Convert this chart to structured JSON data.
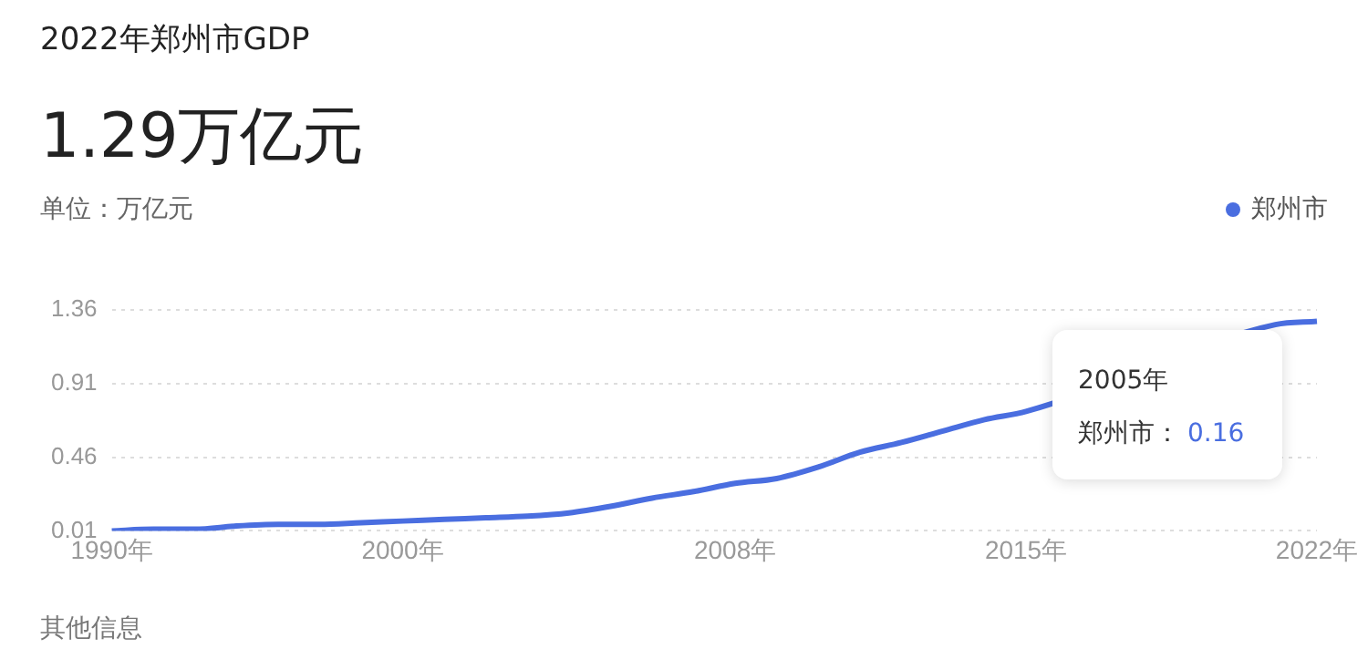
{
  "chart_data": {
    "type": "line",
    "title": "2022年郑州市GDP",
    "subtitle": "1.29万亿元",
    "ylabel": "单位：万亿元",
    "categories": [
      "1990年",
      null,
      null,
      null,
      null,
      null,
      null,
      "2000年",
      null,
      null,
      null,
      null,
      null,
      null,
      null,
      "2008年",
      null,
      null,
      null,
      null,
      null,
      null,
      "2015年",
      null,
      null,
      null,
      null,
      null,
      null,
      "2022年"
    ],
    "series": [
      {
        "name": "郑州市",
        "color": "#4a6ee0",
        "values": [
          0.01,
          0.02,
          0.02,
          0.04,
          0.05,
          0.05,
          0.06,
          0.07,
          0.08,
          0.09,
          0.1,
          0.12,
          0.16,
          0.21,
          0.25,
          0.3,
          0.33,
          0.4,
          0.49,
          0.55,
          0.62,
          0.69,
          0.74,
          null,
          null,
          null,
          null,
          null,
          1.27,
          1.29
        ]
      }
    ],
    "ylim": [
      0.01,
      1.36
    ],
    "yticks": [
      0.01,
      0.46,
      0.91,
      1.36
    ],
    "grid": "y",
    "legend": "top right",
    "marker": "none",
    "annotations": [
      {
        "text": "2005年"
      },
      "郑州市：0.16",
      {
        "text": "其他信息"
      }
    ]
  }
}
